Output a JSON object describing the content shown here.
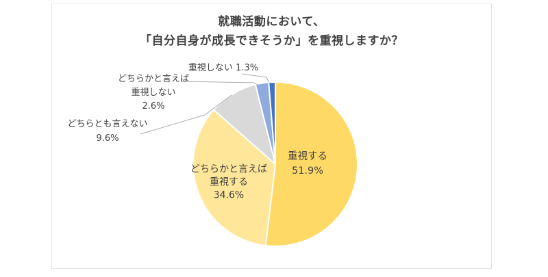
{
  "chart": {
    "title_line1": "就職活動において、",
    "title_line2": "「自分自身が成長できそうか」を重視しますか？",
    "frame_border_color": "#e4e4e4",
    "leader_line_color": "#ababab",
    "text_color": "#404040"
  },
  "chart_data": {
    "type": "pie",
    "title": "就職活動において、「自分自身が成長できそうか」を重視しますか？",
    "start_angle_deg": 0,
    "direction": "clockwise",
    "legend": "none",
    "slices": [
      {
        "label": "重視する",
        "value_pct": 51.9,
        "color": "#FFD966",
        "label_position": "inside"
      },
      {
        "label": "どちらかと言えば重視する",
        "value_pct": 34.6,
        "color": "#FFE699",
        "label_position": "inside"
      },
      {
        "label": "どちらとも言えない",
        "value_pct": 9.6,
        "color": "#D9D9D9",
        "label_position": "outside"
      },
      {
        "label": "どちらかと言えば重視しない",
        "value_pct": 2.6,
        "color": "#8FAADC",
        "label_position": "outside"
      },
      {
        "label": "重視しない",
        "value_pct": 1.3,
        "color": "#4472C4",
        "label_position": "outside"
      }
    ]
  },
  "labels": {
    "emphasize": {
      "line1": "重視する",
      "line2": "51.9%"
    },
    "rather": {
      "line1": "どちらかと言えば",
      "line2": "重視する",
      "line3": "34.6%"
    },
    "neutral": {
      "line1": "どちらとも言えない",
      "line2": "9.6%"
    },
    "rather_not": {
      "line1": "どちらかと言えば",
      "line2": "重視しない",
      "line3": "2.6%"
    },
    "none": {
      "text": "重視しない 1.3%"
    }
  }
}
